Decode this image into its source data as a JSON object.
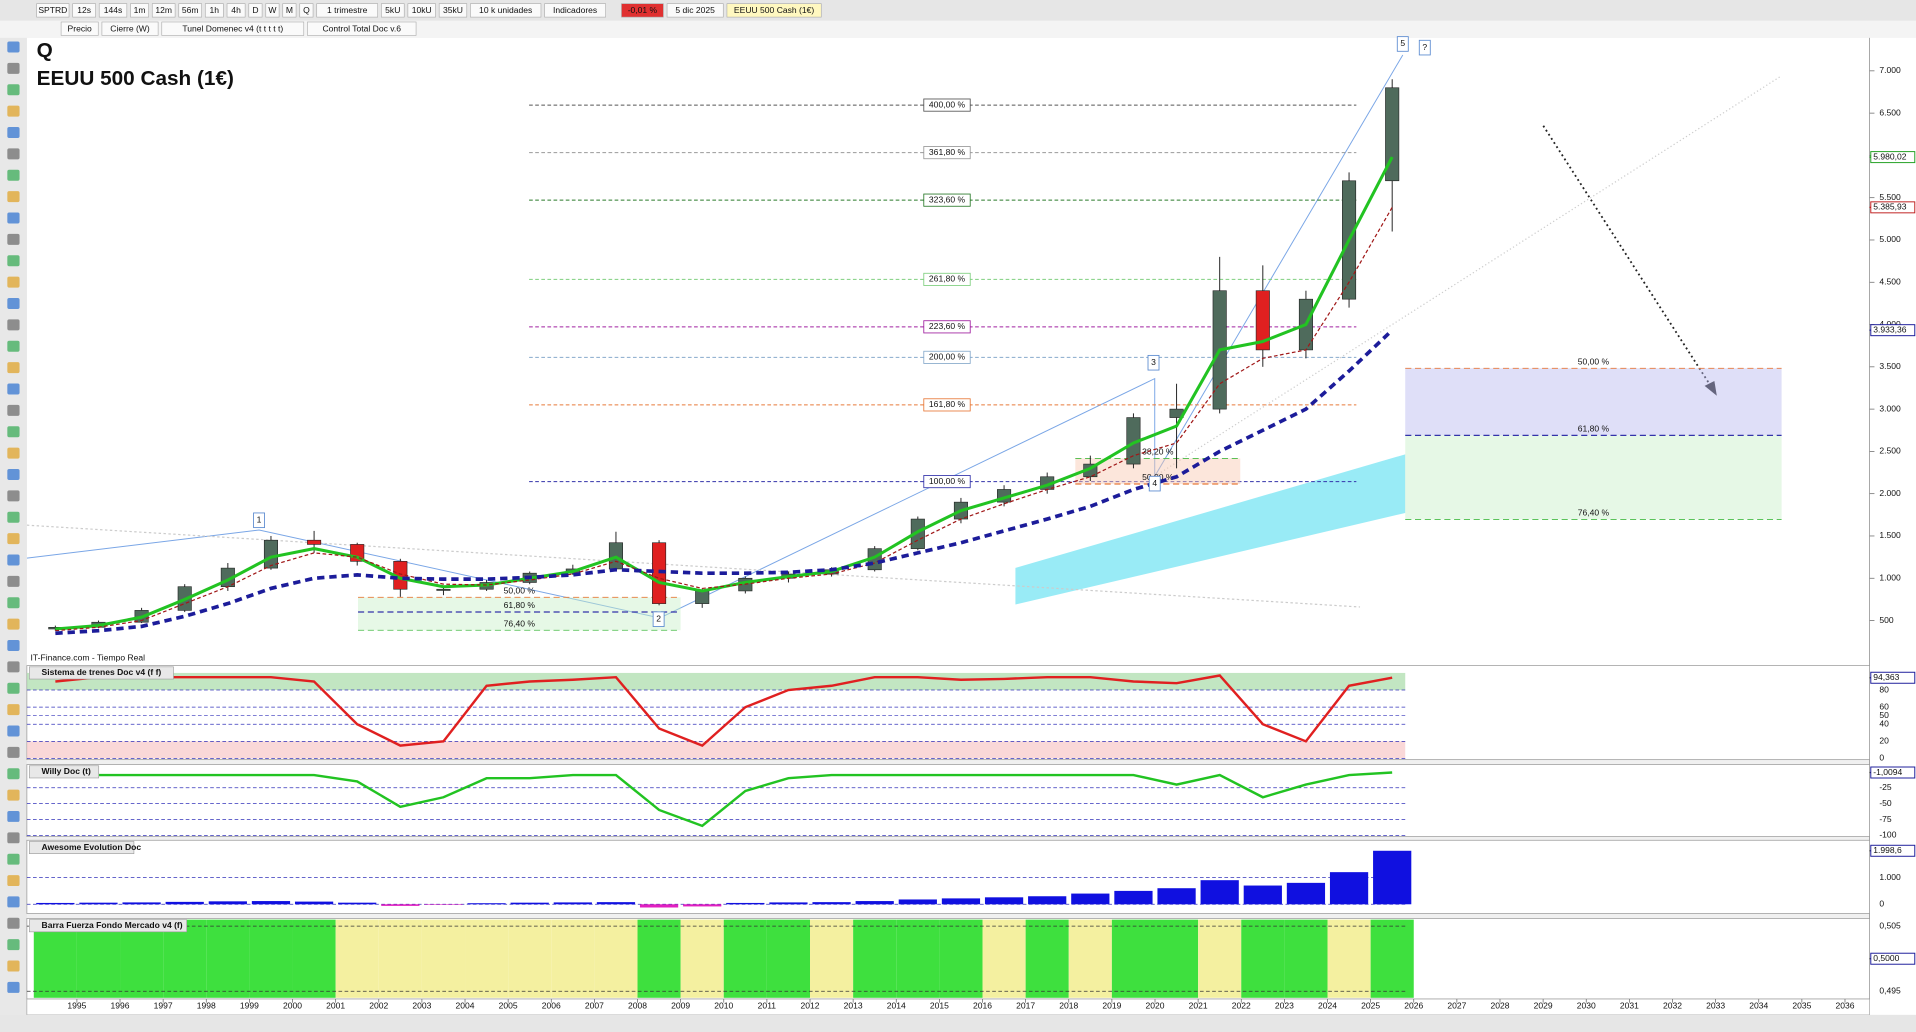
{
  "toolbar": {
    "symbol": "SPTRD",
    "intervals": [
      "12s",
      "144s",
      "1m",
      "12m",
      "56m",
      "1h",
      "4h",
      "D",
      "W",
      "M",
      "Q"
    ],
    "period": "1 trimestre",
    "units": [
      "5kU",
      "10kU",
      "35kU"
    ],
    "units_select": "10 k unidades",
    "indicators": "Indicadores",
    "change": "-0,01 %",
    "date": "5 dic 2025",
    "instrument": "EEUU 500 Cash (1€)"
  },
  "legend_row": [
    "Precio",
    "Cierre (W)",
    "Tunel Domenec v4 (t t t t t)",
    "Control Total Doc v.6"
  ],
  "source": "IT-Finance.com - Tiempo Real",
  "chart_data": [
    {
      "type": "candlestick",
      "title": "Q",
      "subtitle": "EEUU 500 Cash (1€)",
      "x": [
        1994,
        1995,
        1996,
        1997,
        1998,
        1999,
        2000,
        2001,
        2002,
        2003,
        2004,
        2005,
        2006,
        2007,
        2008,
        2009,
        2010,
        2011,
        2012,
        2013,
        2014,
        2015,
        2016,
        2017,
        2018,
        2019,
        2020,
        2021,
        2022,
        2023,
        2024,
        2025
      ],
      "open": [
        400,
        420,
        480,
        620,
        900,
        1120,
        1450,
        1400,
        1200,
        870,
        870,
        950,
        1060,
        1110,
        1420,
        700,
        850,
        1000,
        1050,
        1100,
        1350,
        1700,
        1900,
        2050,
        2200,
        2350,
        2900,
        3000,
        4400,
        3700,
        4300,
        5700
      ],
      "high": [
        440,
        500,
        650,
        930,
        1180,
        1500,
        1560,
        1420,
        1230,
        900,
        980,
        1080,
        1160,
        1550,
        1450,
        880,
        1020,
        1080,
        1130,
        1380,
        1730,
        1950,
        2100,
        2250,
        2450,
        2950,
        3300,
        4800,
        4700,
        4400,
        5800,
        6900
      ],
      "low": [
        380,
        410,
        470,
        600,
        850,
        1100,
        1300,
        1150,
        780,
        800,
        850,
        930,
        1040,
        1100,
        680,
        650,
        820,
        950,
        1020,
        1080,
        1330,
        1650,
        1850,
        2000,
        2150,
        2300,
        2300,
        2950,
        3500,
        3600,
        4200,
        5100
      ],
      "close": [
        420,
        480,
        620,
        900,
        1120,
        1450,
        1400,
        1200,
        870,
        870,
        950,
        1060,
        1110,
        1420,
        700,
        850,
        1000,
        1050,
        1100,
        1350,
        1700,
        1900,
        2050,
        2200,
        2350,
        2900,
        3000,
        4400,
        3700,
        4300,
        5700,
        6800
      ],
      "up_color": "#4f6b5c",
      "down_color": "#e02020",
      "lines": [
        {
          "color": "#22c322",
          "dash": "none",
          "values": [
            400,
            440,
            540,
            750,
            980,
            1250,
            1350,
            1250,
            1000,
            900,
            920,
            1000,
            1080,
            1250,
            950,
            850,
            950,
            1020,
            1080,
            1250,
            1550,
            1800,
            1950,
            2100,
            2300,
            2600,
            2800,
            3700,
            3800,
            4000,
            5000,
            5980.02
          ]
        },
        {
          "color": "#a01818",
          "dash": "3,2",
          "values": [
            380,
            420,
            500,
            700,
            900,
            1150,
            1300,
            1250,
            1050,
            930,
            920,
            980,
            1050,
            1200,
            1000,
            880,
            930,
            1000,
            1050,
            1180,
            1450,
            1700,
            1880,
            2050,
            2200,
            2450,
            2600,
            3300,
            3600,
            3700,
            4500,
            5385.93
          ]
        },
        {
          "color": "#1c1c9a",
          "dash": "6,4",
          "values": [
            350,
            380,
            430,
            550,
            700,
            880,
            1000,
            1040,
            1000,
            990,
            990,
            1010,
            1040,
            1100,
            1080,
            1060,
            1060,
            1070,
            1100,
            1180,
            1300,
            1420,
            1560,
            1700,
            1850,
            2050,
            2200,
            2500,
            2750,
            3000,
            3450,
            3933.36
          ]
        }
      ],
      "xlim": [
        1993.84,
        2036.57
      ],
      "xticks": [
        1995,
        1996,
        1997,
        1998,
        1999,
        2000,
        2001,
        2002,
        2003,
        2004,
        2005,
        2006,
        2007,
        2008,
        2009,
        2010,
        2011,
        2012,
        2013,
        2014,
        2015,
        2016,
        2017,
        2018,
        2019,
        2020,
        2021,
        2022,
        2023,
        2024,
        2025,
        2026,
        2027,
        2028,
        2029,
        2030,
        2031,
        2032,
        2033,
        2034,
        2035,
        2036
      ],
      "ylim": [
        -33,
        7390
      ],
      "yticks": [
        500,
        {
          "value": 1000,
          "label": "1.000"
        },
        {
          "value": 1500,
          "label": "1.500"
        },
        {
          "value": 2000,
          "label": "2.000"
        },
        {
          "value": 2500,
          "label": "2.500"
        },
        {
          "value": 3000,
          "label": "3.000"
        },
        {
          "value": 3500,
          "label": "3.500"
        },
        {
          "value": 4000,
          "label": "4.000"
        },
        {
          "value": 4500,
          "label": "4.500"
        },
        {
          "value": 5000,
          "label": "5.000"
        },
        {
          "value": 5500,
          "label": "5.500"
        },
        {
          "value": 6000,
          "label": "6.000"
        },
        {
          "value": 6500,
          "label": "6.500"
        },
        {
          "value": 7000,
          "label": "7.000"
        }
      ],
      "price_tags": [
        {
          "value": 5980.02,
          "label": "5.980,02",
          "color": "#22a022"
        },
        {
          "value": 5385.93,
          "label": "5.385,93",
          "color": "#c02020"
        },
        {
          "value": 3933.36,
          "label": "3.933,36",
          "color": "#1c1c9a"
        }
      ],
      "fib_levels": [
        {
          "label": "400,00 %",
          "value": 6595,
          "color": "#555555"
        },
        {
          "label": "361,80 %",
          "value": 6033,
          "color": "#999999"
        },
        {
          "label": "323,60 %",
          "value": 5471,
          "color": "#2a7a2a"
        },
        {
          "label": "261,80 %",
          "value": 4534,
          "color": "#7fcf7f"
        },
        {
          "label": "223,60 %",
          "value": 3973,
          "color": "#a020a0"
        },
        {
          "label": "200,00 %",
          "value": 3612,
          "color": "#88aacc"
        },
        {
          "label": "161,80 %",
          "value": 3050,
          "color": "#e87a3a"
        },
        {
          "label": "100,00 %",
          "value": 2143,
          "color": "#3333aa"
        }
      ],
      "retracements": [
        {
          "levels": [
            {
              "label": "50,00 %",
              "value": 3483,
              "color": "#e87a3a"
            },
            {
              "label": "61,80 %",
              "value": 2690,
              "color": "#3333aa"
            },
            {
              "label": "76,40 %",
              "value": 1696,
              "color": "#44bb44"
            }
          ]
        },
        {
          "levels": [
            {
              "label": "50,00 %",
              "value": 774,
              "color": "#e87a3a"
            },
            {
              "label": "61,80 %",
              "value": 601,
              "color": "#3333aa"
            },
            {
              "label": "76,40 %",
              "value": 385,
              "color": "#44bb44"
            }
          ]
        },
        {
          "levels": [
            {
              "label": "38,20 %",
              "value": 2417,
              "color": "#44bb44"
            },
            {
              "label": "50,00 %",
              "value": 2114,
              "color": "#e87a3a"
            }
          ]
        }
      ],
      "wave_labels": [
        "1",
        "2",
        "3",
        "4",
        "5",
        "?"
      ]
    },
    {
      "type": "line",
      "title": "Sistema de trenes Doc v4 (f f)",
      "color": "#e02020",
      "values": [
        90,
        95,
        95,
        95,
        95,
        95,
        90,
        40,
        15,
        20,
        85,
        90,
        92,
        95,
        35,
        15,
        60,
        80,
        85,
        95,
        95,
        92,
        93,
        95,
        95,
        90,
        88,
        97,
        40,
        20,
        85,
        94.363
      ],
      "ylim": [
        0,
        100
      ],
      "yticks": [
        0,
        20,
        40,
        50,
        60,
        80
      ],
      "tag": {
        "value": 94.363,
        "label": "94,363"
      }
    },
    {
      "type": "line",
      "title": "Willy Doc (t)",
      "color": "#22c322",
      "values": [
        -5,
        -5,
        -5,
        -5,
        -5,
        -5,
        -5,
        -15,
        -55,
        -40,
        -10,
        -10,
        -5,
        -5,
        -60,
        -85,
        -30,
        -10,
        -5,
        -5,
        -5,
        -5,
        -5,
        -5,
        -5,
        -5,
        -20,
        -5,
        -40,
        -20,
        -5,
        -1.0094
      ],
      "ylim": [
        -100,
        0
      ],
      "yticks": [
        -100,
        -75,
        -50,
        -25
      ],
      "tag": {
        "value": -1.0094,
        "label": "-1,0094"
      }
    },
    {
      "type": "bar",
      "title": "Awesome Evolution Doc",
      "color": "#1010e0",
      "neg_color": "#e020c0",
      "values": [
        50,
        60,
        70,
        90,
        110,
        120,
        100,
        60,
        -60,
        -20,
        40,
        60,
        70,
        80,
        -120,
        -80,
        50,
        70,
        80,
        120,
        180,
        220,
        260,
        300,
        400,
        500,
        600,
        900,
        700,
        800,
        1200,
        1998.6
      ],
      "ylim": [
        -300,
        2300
      ],
      "yticks": [
        0,
        {
          "value": 1000,
          "label": "1.000"
        }
      ],
      "tag": {
        "value": 1998.6,
        "label": "1.998,6"
      }
    },
    {
      "type": "band",
      "title": "Barra Fuerza Fondo Mercado v4 (f)",
      "colors": [
        "#3ee03e",
        "#3ee03e",
        "#3ee03e",
        "#3ee03e",
        "#3ee03e",
        "#3ee03e",
        "#3ee03e",
        "#f4f0a0",
        "#f4f0a0",
        "#f4f0a0",
        "#f4f0a0",
        "#f4f0a0",
        "#f4f0a0",
        "#f4f0a0",
        "#3ee03e",
        "#f4f0a0",
        "#3ee03e",
        "#3ee03e",
        "#f4f0a0",
        "#3ee03e",
        "#3ee03e",
        "#3ee03e",
        "#f4f0a0",
        "#3ee03e",
        "#f4f0a0",
        "#3ee03e",
        "#3ee03e",
        "#f4f0a0",
        "#3ee03e",
        "#3ee03e",
        "#f4f0a0",
        "#3ee03e"
      ],
      "ylim": [
        0.494,
        0.506
      ],
      "yticks": [
        {
          "value": 0.495,
          "label": "0,495"
        },
        {
          "value": 0.505,
          "label": "0,505"
        }
      ],
      "tag": {
        "value": 0.5,
        "label": "0,5000"
      }
    }
  ]
}
